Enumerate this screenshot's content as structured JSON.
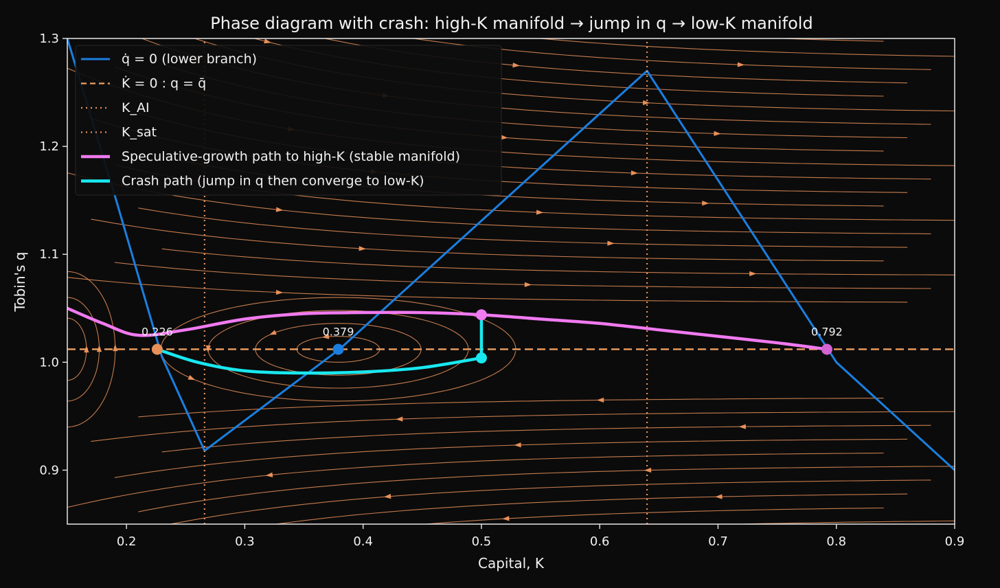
{
  "colors": {
    "background": "#0b0b0b",
    "stream": "#e8905a",
    "qdot_zero": "#1a7fe0",
    "kdot_zero": "#f0a060",
    "vertical_lines": "#e8905a",
    "spec_path": "#f07af0",
    "crash_path": "#19e8f0",
    "text": "#f2f2f2",
    "legend_bg": "#0e0e0e",
    "legend_border": "#2a2a2a",
    "marker_left": "#e8905a",
    "marker_mid": "#1a7fe0",
    "marker_right": "#d463d4",
    "marker_crash": "#19e8f0",
    "marker_spec": "#f07af0"
  },
  "chart_data": {
    "type": "line",
    "title": "Phase diagram with crash: high-K manifold → jump in q → low-K manifold",
    "xlabel": "Capital, K",
    "ylabel": "Tobin's q",
    "xlim": [
      0.15,
      0.9
    ],
    "ylim": [
      0.85,
      1.3
    ],
    "xticks": [
      0.2,
      0.3,
      0.4,
      0.5,
      0.6,
      0.7,
      0.8,
      0.9
    ],
    "yticks": [
      0.9,
      1.0,
      1.1,
      1.2,
      1.3
    ],
    "xtick_labels": [
      "0.2",
      "0.3",
      "0.4",
      "0.5",
      "0.6",
      "0.7",
      "0.8",
      "0.9"
    ],
    "ytick_labels": [
      "0.9",
      "1.0",
      "1.1",
      "1.2",
      "1.3"
    ],
    "grid": false,
    "legend_position": "upper-left",
    "qbar": 1.012,
    "K_AI": 0.266,
    "K_sat": 0.64,
    "series": [
      {
        "name": "q̇ = 0 (lower branch)",
        "key": "qdot_zero",
        "style": "solid",
        "points": [
          [
            0.15,
            1.3
          ],
          [
            0.19,
            1.155
          ],
          [
            0.23,
            1.005
          ],
          [
            0.266,
            0.918
          ],
          [
            0.38,
            1.012
          ],
          [
            0.64,
            1.27
          ],
          [
            0.8,
            1.0
          ],
          [
            0.9,
            0.9
          ]
        ]
      },
      {
        "name": "K̇ = 0 : q = q̄",
        "key": "kdot_zero",
        "style": "dashed",
        "points": [
          [
            0.15,
            1.012
          ],
          [
            0.9,
            1.012
          ]
        ]
      },
      {
        "name": "K_AI",
        "key": "k_ai",
        "style": "dotted",
        "points": [
          [
            0.266,
            0.85
          ],
          [
            0.266,
            1.3
          ]
        ]
      },
      {
        "name": "K_sat",
        "key": "k_sat",
        "style": "dotted",
        "points": [
          [
            0.64,
            0.85
          ],
          [
            0.64,
            1.3
          ]
        ]
      },
      {
        "name": "Speculative-growth path to high-K (stable manifold)",
        "key": "spec_path",
        "style": "solid",
        "points": [
          [
            0.15,
            1.05
          ],
          [
            0.18,
            1.036
          ],
          [
            0.21,
            1.025
          ],
          [
            0.25,
            1.03
          ],
          [
            0.3,
            1.04
          ],
          [
            0.35,
            1.045
          ],
          [
            0.4,
            1.046
          ],
          [
            0.45,
            1.046
          ],
          [
            0.5,
            1.044
          ],
          [
            0.55,
            1.04
          ],
          [
            0.6,
            1.036
          ],
          [
            0.65,
            1.03
          ],
          [
            0.7,
            1.024
          ],
          [
            0.75,
            1.018
          ],
          [
            0.792,
            1.012
          ]
        ]
      },
      {
        "name": "Crash path (jump in q then converge to low-K)",
        "key": "crash_path",
        "style": "solid",
        "points": [
          [
            0.5,
            1.044
          ],
          [
            0.5,
            1.004
          ],
          [
            0.45,
            0.995
          ],
          [
            0.4,
            0.991
          ],
          [
            0.35,
            0.99
          ],
          [
            0.3,
            0.992
          ],
          [
            0.26,
            1.0
          ],
          [
            0.226,
            1.012
          ]
        ]
      }
    ],
    "steady_states": [
      {
        "K": 0.226,
        "q": 1.012,
        "label": "0.226",
        "key": "marker_left"
      },
      {
        "K": 0.379,
        "q": 1.012,
        "label": "0.379",
        "key": "marker_mid"
      },
      {
        "K": 0.792,
        "q": 1.012,
        "label": "0.792",
        "key": "marker_right"
      }
    ],
    "crash_points": [
      {
        "K": 0.5,
        "q": 1.044,
        "key": "marker_spec"
      },
      {
        "K": 0.5,
        "q": 1.004,
        "key": "marker_crash"
      }
    ]
  },
  "legend": [
    {
      "label": "q̇ = 0 (lower branch)",
      "key": "qdot_zero",
      "style": "solid"
    },
    {
      "label": "K̇ = 0 : q = q̄",
      "key": "kdot_zero",
      "style": "dashed"
    },
    {
      "label": "K_AI",
      "key": "k_ai",
      "style": "dotted"
    },
    {
      "label": "K_sat",
      "key": "k_sat",
      "style": "dotted"
    },
    {
      "label": "Speculative-growth path to high-K (stable manifold)",
      "key": "spec_path",
      "style": "solid"
    },
    {
      "label": "Crash path (jump in q then converge to low-K)",
      "key": "crash_path",
      "style": "solid"
    }
  ]
}
